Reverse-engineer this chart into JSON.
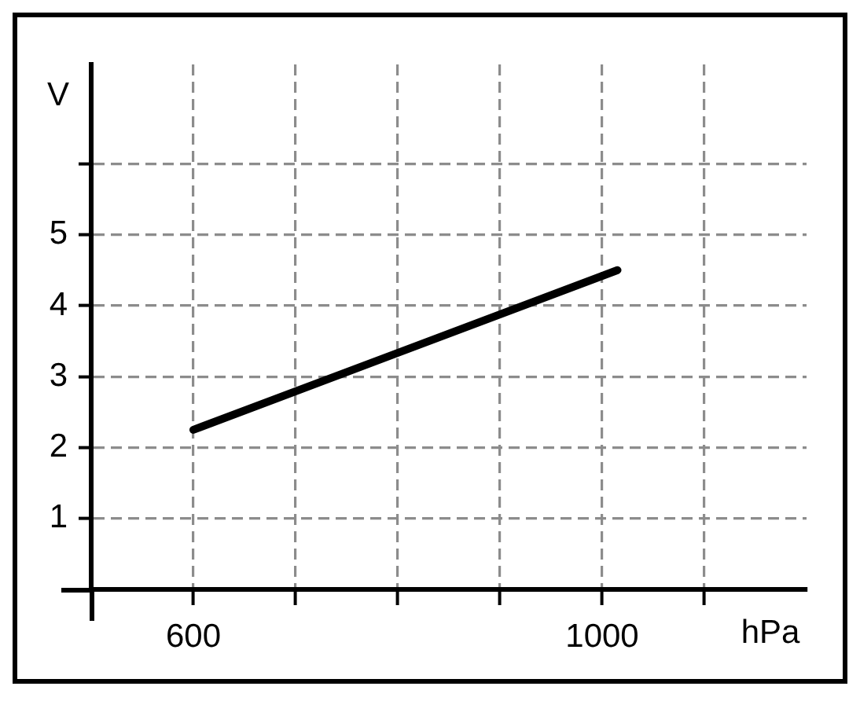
{
  "chart_data": {
    "type": "line",
    "xlabel": "hPa",
    "ylabel": "V",
    "x": [
      600,
      1015
    ],
    "series": [
      {
        "color": "#000000",
        "values": [
          2.25,
          4.5
        ]
      }
    ],
    "xlim": [
      500,
      1200
    ],
    "ylim": [
      0,
      7.4
    ],
    "xticks": [
      600,
      {
        "value": 700,
        "label": null
      },
      {
        "value": 800,
        "label": null
      },
      {
        "value": 900,
        "label": null
      },
      1000,
      {
        "value": 1100,
        "label": null
      }
    ],
    "yticks": [
      1,
      2,
      3,
      4,
      5,
      {
        "value": 6,
        "label": null
      }
    ],
    "grid": true,
    "marker": "none",
    "line_style": "solid"
  }
}
